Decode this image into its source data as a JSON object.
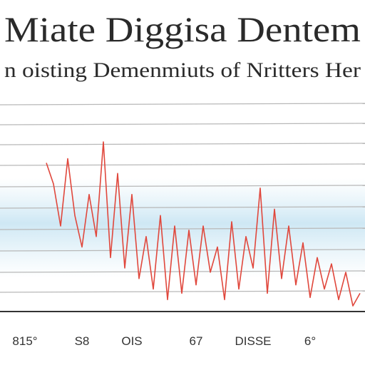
{
  "chart_data": {
    "type": "line",
    "title": "Miate Diggisa Dentem",
    "subtitle": "n oisting Demenmiuts of Nritters Her",
    "categories": [
      null,
      null,
      "815°",
      null,
      null,
      null,
      null,
      null,
      null,
      null,
      "S8",
      null,
      null,
      null,
      null,
      null,
      null,
      "OIS",
      null,
      null,
      null,
      null,
      null,
      null,
      null,
      null,
      "67",
      null,
      null,
      null,
      null,
      null,
      null,
      null,
      "DISSE",
      null,
      null,
      null,
      null,
      null,
      null,
      null,
      "6°",
      null,
      null,
      null,
      null,
      null,
      null,
      null
    ],
    "series": [
      {
        "color": "#e0473c",
        "values": [
          null,
          null,
          null,
          null,
          null,
          70,
          60,
          40,
          72,
          45,
          30,
          55,
          35,
          80,
          25,
          65,
          20,
          55,
          15,
          35,
          10,
          45,
          5,
          40,
          8,
          38,
          12,
          40,
          18,
          30,
          5,
          42,
          10,
          35,
          20,
          58,
          8,
          48,
          15,
          40,
          12,
          32,
          6,
          25,
          10,
          22,
          5,
          18,
          2,
          8
        ]
      }
    ],
    "ylim": [
      0,
      100
    ]
  }
}
